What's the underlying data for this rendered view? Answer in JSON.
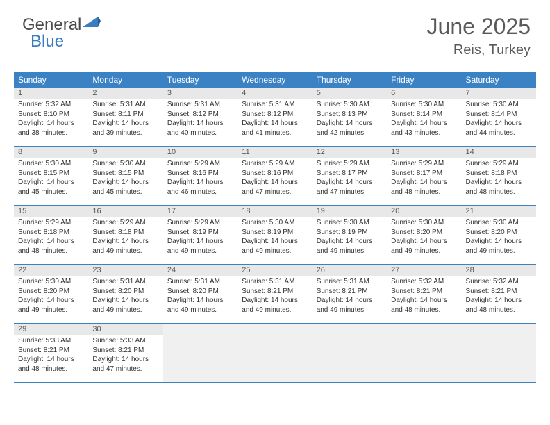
{
  "logo": {
    "text_general": "General",
    "text_blue": "Blue"
  },
  "header": {
    "month_title": "June 2025",
    "location": "Reis, Turkey"
  },
  "weekdays": [
    "Sunday",
    "Monday",
    "Tuesday",
    "Wednesday",
    "Thursday",
    "Friday",
    "Saturday"
  ],
  "colors": {
    "header_bar": "#3b82c4",
    "day_num_bg": "#e8e8e8",
    "text_muted": "#595959",
    "logo_blue": "#3b7bbf",
    "border": "#3b82c4"
  },
  "weeks": [
    [
      {
        "num": "1",
        "sunrise": "Sunrise: 5:32 AM",
        "sunset": "Sunset: 8:10 PM",
        "daylight": "Daylight: 14 hours and 38 minutes."
      },
      {
        "num": "2",
        "sunrise": "Sunrise: 5:31 AM",
        "sunset": "Sunset: 8:11 PM",
        "daylight": "Daylight: 14 hours and 39 minutes."
      },
      {
        "num": "3",
        "sunrise": "Sunrise: 5:31 AM",
        "sunset": "Sunset: 8:12 PM",
        "daylight": "Daylight: 14 hours and 40 minutes."
      },
      {
        "num": "4",
        "sunrise": "Sunrise: 5:31 AM",
        "sunset": "Sunset: 8:12 PM",
        "daylight": "Daylight: 14 hours and 41 minutes."
      },
      {
        "num": "5",
        "sunrise": "Sunrise: 5:30 AM",
        "sunset": "Sunset: 8:13 PM",
        "daylight": "Daylight: 14 hours and 42 minutes."
      },
      {
        "num": "6",
        "sunrise": "Sunrise: 5:30 AM",
        "sunset": "Sunset: 8:14 PM",
        "daylight": "Daylight: 14 hours and 43 minutes."
      },
      {
        "num": "7",
        "sunrise": "Sunrise: 5:30 AM",
        "sunset": "Sunset: 8:14 PM",
        "daylight": "Daylight: 14 hours and 44 minutes."
      }
    ],
    [
      {
        "num": "8",
        "sunrise": "Sunrise: 5:30 AM",
        "sunset": "Sunset: 8:15 PM",
        "daylight": "Daylight: 14 hours and 45 minutes."
      },
      {
        "num": "9",
        "sunrise": "Sunrise: 5:30 AM",
        "sunset": "Sunset: 8:15 PM",
        "daylight": "Daylight: 14 hours and 45 minutes."
      },
      {
        "num": "10",
        "sunrise": "Sunrise: 5:29 AM",
        "sunset": "Sunset: 8:16 PM",
        "daylight": "Daylight: 14 hours and 46 minutes."
      },
      {
        "num": "11",
        "sunrise": "Sunrise: 5:29 AM",
        "sunset": "Sunset: 8:16 PM",
        "daylight": "Daylight: 14 hours and 47 minutes."
      },
      {
        "num": "12",
        "sunrise": "Sunrise: 5:29 AM",
        "sunset": "Sunset: 8:17 PM",
        "daylight": "Daylight: 14 hours and 47 minutes."
      },
      {
        "num": "13",
        "sunrise": "Sunrise: 5:29 AM",
        "sunset": "Sunset: 8:17 PM",
        "daylight": "Daylight: 14 hours and 48 minutes."
      },
      {
        "num": "14",
        "sunrise": "Sunrise: 5:29 AM",
        "sunset": "Sunset: 8:18 PM",
        "daylight": "Daylight: 14 hours and 48 minutes."
      }
    ],
    [
      {
        "num": "15",
        "sunrise": "Sunrise: 5:29 AM",
        "sunset": "Sunset: 8:18 PM",
        "daylight": "Daylight: 14 hours and 48 minutes."
      },
      {
        "num": "16",
        "sunrise": "Sunrise: 5:29 AM",
        "sunset": "Sunset: 8:18 PM",
        "daylight": "Daylight: 14 hours and 49 minutes."
      },
      {
        "num": "17",
        "sunrise": "Sunrise: 5:29 AM",
        "sunset": "Sunset: 8:19 PM",
        "daylight": "Daylight: 14 hours and 49 minutes."
      },
      {
        "num": "18",
        "sunrise": "Sunrise: 5:30 AM",
        "sunset": "Sunset: 8:19 PM",
        "daylight": "Daylight: 14 hours and 49 minutes."
      },
      {
        "num": "19",
        "sunrise": "Sunrise: 5:30 AM",
        "sunset": "Sunset: 8:19 PM",
        "daylight": "Daylight: 14 hours and 49 minutes."
      },
      {
        "num": "20",
        "sunrise": "Sunrise: 5:30 AM",
        "sunset": "Sunset: 8:20 PM",
        "daylight": "Daylight: 14 hours and 49 minutes."
      },
      {
        "num": "21",
        "sunrise": "Sunrise: 5:30 AM",
        "sunset": "Sunset: 8:20 PM",
        "daylight": "Daylight: 14 hours and 49 minutes."
      }
    ],
    [
      {
        "num": "22",
        "sunrise": "Sunrise: 5:30 AM",
        "sunset": "Sunset: 8:20 PM",
        "daylight": "Daylight: 14 hours and 49 minutes."
      },
      {
        "num": "23",
        "sunrise": "Sunrise: 5:31 AM",
        "sunset": "Sunset: 8:20 PM",
        "daylight": "Daylight: 14 hours and 49 minutes."
      },
      {
        "num": "24",
        "sunrise": "Sunrise: 5:31 AM",
        "sunset": "Sunset: 8:20 PM",
        "daylight": "Daylight: 14 hours and 49 minutes."
      },
      {
        "num": "25",
        "sunrise": "Sunrise: 5:31 AM",
        "sunset": "Sunset: 8:21 PM",
        "daylight": "Daylight: 14 hours and 49 minutes."
      },
      {
        "num": "26",
        "sunrise": "Sunrise: 5:31 AM",
        "sunset": "Sunset: 8:21 PM",
        "daylight": "Daylight: 14 hours and 49 minutes."
      },
      {
        "num": "27",
        "sunrise": "Sunrise: 5:32 AM",
        "sunset": "Sunset: 8:21 PM",
        "daylight": "Daylight: 14 hours and 48 minutes."
      },
      {
        "num": "28",
        "sunrise": "Sunrise: 5:32 AM",
        "sunset": "Sunset: 8:21 PM",
        "daylight": "Daylight: 14 hours and 48 minutes."
      }
    ],
    [
      {
        "num": "29",
        "sunrise": "Sunrise: 5:33 AM",
        "sunset": "Sunset: 8:21 PM",
        "daylight": "Daylight: 14 hours and 48 minutes."
      },
      {
        "num": "30",
        "sunrise": "Sunrise: 5:33 AM",
        "sunset": "Sunset: 8:21 PM",
        "daylight": "Daylight: 14 hours and 47 minutes."
      },
      null,
      null,
      null,
      null,
      null
    ]
  ]
}
